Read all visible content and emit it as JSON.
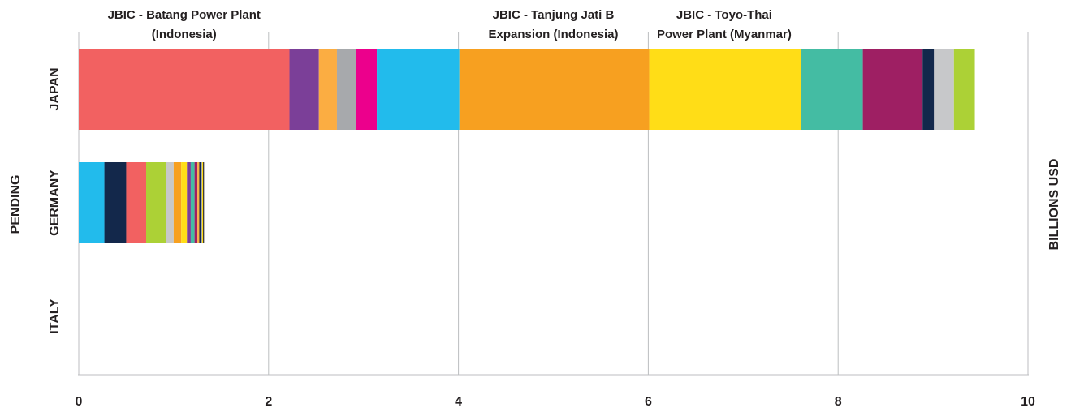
{
  "chart_data": {
    "type": "bar",
    "orientation": "horizontal",
    "stacked": true,
    "ylabel": "PENDING",
    "xlabel": "BILLIONS USD",
    "xlim": [
      0,
      10
    ],
    "x_ticks": [
      "0",
      "2",
      "4",
      "6",
      "8",
      "10"
    ],
    "grid": "vertical",
    "categories": [
      "JAPAN",
      "GERMANY",
      "ITALY"
    ],
    "stacks": [
      {
        "category": "JAPAN",
        "segments": [
          {
            "value": 2.22,
            "color": "#f26161"
          },
          {
            "value": 0.31,
            "color": "#7b3f98"
          },
          {
            "value": 0.19,
            "color": "#fbad42"
          },
          {
            "value": 0.2,
            "color": "#a7a9ac"
          },
          {
            "value": 0.22,
            "color": "#ec008c"
          },
          {
            "value": 0.87,
            "color": "#22bbec"
          },
          {
            "value": 2.0,
            "color": "#f7a020"
          },
          {
            "value": 1.6,
            "color": "#ffdd17"
          },
          {
            "value": 0.65,
            "color": "#44bca3"
          },
          {
            "value": 0.63,
            "color": "#9e1f63"
          },
          {
            "value": 0.12,
            "color": "#13284b"
          },
          {
            "value": 0.21,
            "color": "#c7c8ca"
          },
          {
            "value": 0.22,
            "color": "#acd136"
          }
        ]
      },
      {
        "category": "GERMANY",
        "segments": [
          {
            "value": 0.27,
            "color": "#22bbec"
          },
          {
            "value": 0.23,
            "color": "#13284b"
          },
          {
            "value": 0.21,
            "color": "#f26161"
          },
          {
            "value": 0.21,
            "color": "#acd136"
          },
          {
            "value": 0.08,
            "color": "#c7c8ca"
          },
          {
            "value": 0.08,
            "color": "#f7a020"
          },
          {
            "value": 0.06,
            "color": "#ffdd17"
          },
          {
            "value": 0.04,
            "color": "#7b3f98"
          },
          {
            "value": 0.04,
            "color": "#44bca3"
          },
          {
            "value": 0.03,
            "color": "#9e1f63"
          },
          {
            "value": 0.02,
            "color": "#fbad42"
          },
          {
            "value": 0.02,
            "color": "#13284b"
          },
          {
            "value": 0.01,
            "color": "#a7a9ac"
          },
          {
            "value": 0.01,
            "color": "#ffdd17"
          },
          {
            "value": 0.01,
            "color": "#231f20"
          }
        ]
      },
      {
        "category": "ITALY",
        "segments": []
      }
    ],
    "annotations": [
      {
        "lines": [
          "JBIC - Batang Power Plant",
          "(Indonesia)"
        ],
        "x": 1.11
      },
      {
        "lines": [
          "JBIC - Tanjung Jati B",
          "Expansion (Indonesia)"
        ],
        "x": 5.0
      },
      {
        "lines": [
          "JBIC - Toyo-Thai",
          "Power Plant (Myanmar)"
        ],
        "x": 6.8
      }
    ]
  }
}
